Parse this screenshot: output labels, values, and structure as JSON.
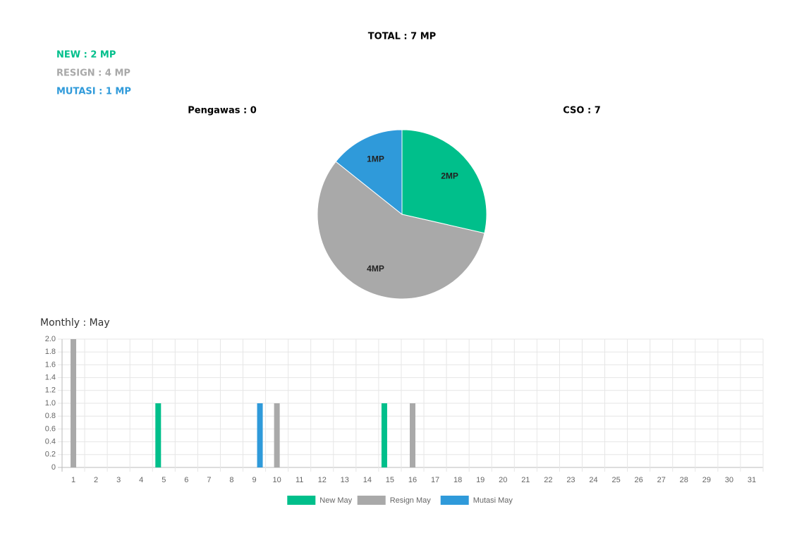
{
  "summary": {
    "total": "TOTAL : 7 MP",
    "new": "NEW : 2 MP",
    "resign": "RESIGN : 4 MP",
    "mutasi": "MUTASI : 1 MP",
    "pengawas": "Pengawas : 0",
    "cso": "CSO : 7"
  },
  "chart_data": [
    {
      "type": "pie",
      "values": [
        2,
        4,
        1
      ],
      "value_labels": [
        "2MP",
        "4MP",
        "1MP"
      ],
      "colors": [
        "#00bf8b",
        "#a9a9a9",
        "#2f9ada"
      ]
    },
    {
      "type": "bar",
      "title": "Monthly : May",
      "categories": [
        "1",
        "2",
        "3",
        "4",
        "5",
        "6",
        "7",
        "8",
        "9",
        "10",
        "11",
        "12",
        "13",
        "14",
        "15",
        "16",
        "17",
        "18",
        "19",
        "20",
        "21",
        "22",
        "23",
        "24",
        "25",
        "26",
        "27",
        "28",
        "29",
        "30",
        "31"
      ],
      "series": [
        {
          "name": "New May",
          "color": "#00bf8b",
          "values": [
            0,
            0,
            0,
            0,
            1,
            0,
            0,
            0,
            0,
            0,
            0,
            0,
            0,
            0,
            1,
            0,
            0,
            0,
            0,
            0,
            0,
            0,
            0,
            0,
            0,
            0,
            0,
            0,
            0,
            0,
            0
          ]
        },
        {
          "name": "Resign May",
          "color": "#a9a9a9",
          "values": [
            2,
            0,
            0,
            0,
            0,
            0,
            0,
            0,
            0,
            1,
            0,
            0,
            0,
            0,
            0,
            1,
            0,
            0,
            0,
            0,
            0,
            0,
            0,
            0,
            0,
            0,
            0,
            0,
            0,
            0,
            0
          ]
        },
        {
          "name": "Mutasi May",
          "color": "#2f9ada",
          "values": [
            0,
            0,
            0,
            0,
            0,
            0,
            0,
            0,
            1,
            0,
            0,
            0,
            0,
            0,
            0,
            0,
            0,
            0,
            0,
            0,
            0,
            0,
            0,
            0,
            0,
            0,
            0,
            0,
            0,
            0,
            0
          ]
        }
      ],
      "ylim": [
        0,
        2
      ],
      "yticks": [
        0,
        0.2,
        0.4,
        0.6,
        0.8,
        {
          "value": 1,
          "label": "1.0"
        },
        1.2,
        1.4,
        1.6,
        1.8,
        {
          "value": 2,
          "label": "2.0"
        }
      ],
      "grid": true
    }
  ]
}
